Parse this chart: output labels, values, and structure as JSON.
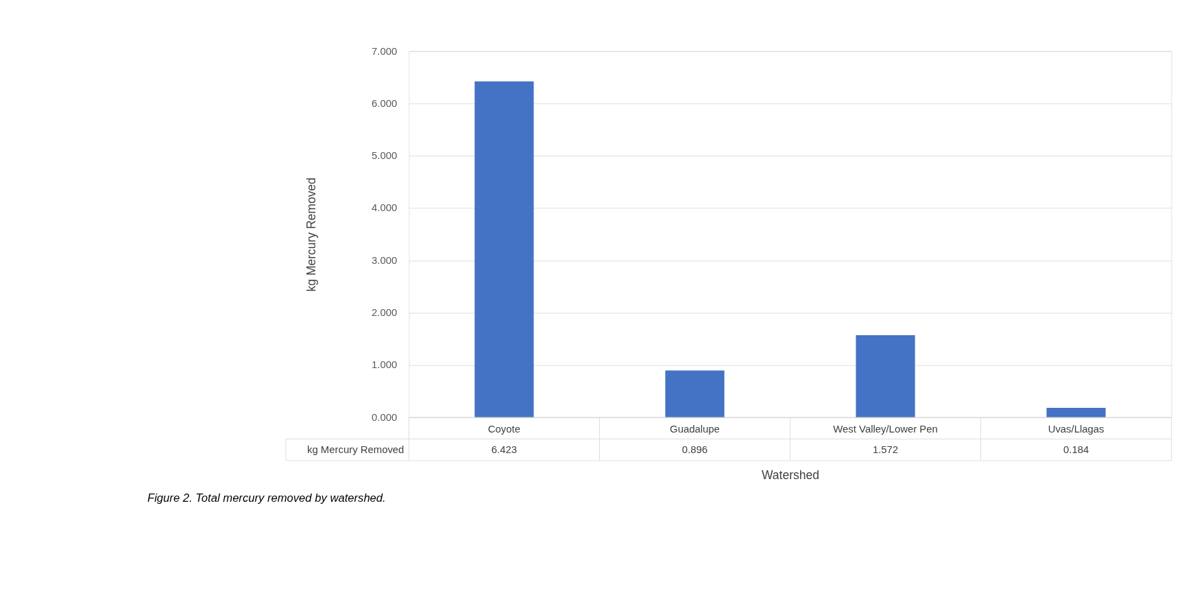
{
  "chart_data": {
    "type": "bar",
    "xlabel": "Watershed",
    "ylabel": "kg Mercury Removed",
    "categories": [
      "Coyote",
      "Guadalupe",
      "West Valley/Lower Pen",
      "Uvas/Llagas"
    ],
    "series": [
      {
        "name": "kg Mercury Removed",
        "color": "#4472c4",
        "values": [
          6.423,
          0.896,
          1.572,
          0.184
        ]
      }
    ],
    "data_labels": true,
    "ylim": [
      0,
      7
    ],
    "yticks": [
      {
        "value": 0,
        "label": "0.000"
      },
      {
        "value": 1,
        "label": "1.000"
      },
      {
        "value": 2,
        "label": "2.000"
      },
      {
        "value": 3,
        "label": "3.000"
      },
      {
        "value": 4,
        "label": "4.000"
      },
      {
        "value": 5,
        "label": "5.000"
      },
      {
        "value": 6,
        "label": "6.000"
      },
      {
        "value": 7,
        "label": "7.000"
      }
    ],
    "grid": "y",
    "legend": false,
    "annotations": [
      "Figure 2. Total mercury removed by watershed."
    ]
  }
}
